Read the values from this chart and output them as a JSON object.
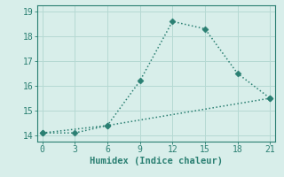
{
  "line1_x": [
    0,
    6,
    9,
    12,
    15,
    18,
    21
  ],
  "line1_y": [
    14.1,
    14.4,
    16.2,
    18.6,
    18.3,
    16.5,
    15.5
  ],
  "line2_x": [
    0,
    3,
    6,
    21
  ],
  "line2_y": [
    14.1,
    14.1,
    14.4,
    15.5
  ],
  "color": "#2a7f72",
  "bg_color": "#d8eeea",
  "grid_color": "#b5d9d3",
  "xlabel": "Humidex (Indice chaleur)",
  "xlim": [
    -0.5,
    21.5
  ],
  "ylim": [
    13.75,
    19.25
  ],
  "xticks": [
    0,
    3,
    6,
    9,
    12,
    15,
    18,
    21
  ],
  "yticks": [
    14,
    15,
    16,
    17,
    18,
    19
  ],
  "xlabel_fontsize": 7.5,
  "tick_fontsize": 7,
  "linewidth": 1.1,
  "markersize": 3.5
}
